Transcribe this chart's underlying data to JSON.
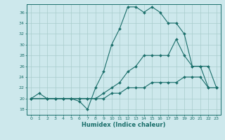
{
  "xlabel": "Humidex (Indice chaleur)",
  "bg_color": "#cde8ec",
  "grid_color": "#a8cccc",
  "line_color": "#1a6e6a",
  "xlim": [
    -0.5,
    23.5
  ],
  "ylim": [
    17,
    37.5
  ],
  "xticks": [
    0,
    1,
    2,
    3,
    4,
    5,
    6,
    7,
    8,
    9,
    10,
    11,
    12,
    13,
    14,
    15,
    16,
    17,
    18,
    19,
    20,
    21,
    22,
    23
  ],
  "yticks": [
    18,
    20,
    22,
    24,
    26,
    28,
    30,
    32,
    34,
    36
  ],
  "curve1_x": [
    0,
    1,
    2,
    3,
    4,
    5,
    6,
    7,
    8,
    9,
    10,
    11,
    12,
    13,
    14,
    15,
    16,
    17,
    18,
    19,
    20,
    21,
    22,
    23
  ],
  "curve1_y": [
    20,
    21,
    20,
    20,
    20,
    20,
    19.5,
    18,
    22,
    25,
    30,
    33,
    37,
    37,
    36,
    37,
    36,
    34,
    34,
    32,
    26,
    26,
    22,
    22
  ],
  "curve2_x": [
    0,
    2,
    3,
    4,
    5,
    6,
    7,
    8,
    9,
    10,
    11,
    12,
    13,
    14,
    15,
    16,
    17,
    18,
    19,
    20,
    21,
    22,
    23
  ],
  "curve2_y": [
    20,
    20,
    20,
    20,
    20,
    20,
    20,
    20,
    21,
    22,
    23,
    25,
    26,
    28,
    28,
    28,
    28,
    31,
    28,
    26,
    26,
    26,
    22
  ],
  "curve3_x": [
    0,
    2,
    3,
    4,
    5,
    6,
    7,
    8,
    9,
    10,
    11,
    12,
    13,
    14,
    15,
    16,
    17,
    18,
    19,
    20,
    21,
    22,
    23
  ],
  "curve3_y": [
    20,
    20,
    20,
    20,
    20,
    20,
    20,
    20,
    20,
    21,
    21,
    22,
    22,
    22,
    23,
    23,
    23,
    23,
    24,
    24,
    24,
    22,
    22
  ]
}
